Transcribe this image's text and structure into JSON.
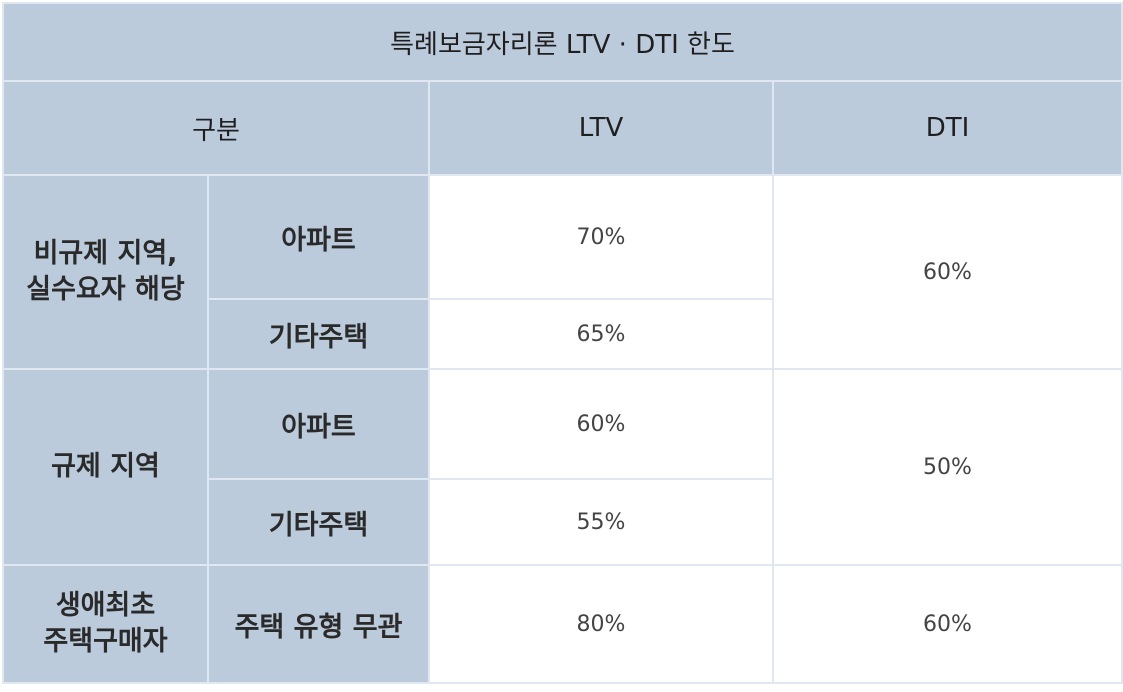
{
  "title": "특례보금자리론 LTV · DTI 한도",
  "columns": {
    "category": "구분",
    "ltv": "LTV",
    "dti": "DTI"
  },
  "groups": [
    {
      "label_line1": "비규제 지역,",
      "label_line2": "실수요자 해당",
      "rows": [
        {
          "type": "아파트",
          "ltv": "70%"
        },
        {
          "type": "기타주택",
          "ltv": "65%"
        }
      ],
      "dti": "60%"
    },
    {
      "label_line1": "규제 지역",
      "rows": [
        {
          "type": "아파트",
          "ltv": "60%"
        },
        {
          "type": "기타주택",
          "ltv": "55%"
        }
      ],
      "dti": "50%"
    },
    {
      "label_line1": "생애최초",
      "label_line2": "주택구매자",
      "rows": [
        {
          "type": "주택 유형 무관",
          "ltv": "80%"
        }
      ],
      "dti": "60%"
    }
  ],
  "colors": {
    "header_bg": "#bccbdc",
    "cell_bg": "#ffffff",
    "border": "#dfe7f1"
  }
}
